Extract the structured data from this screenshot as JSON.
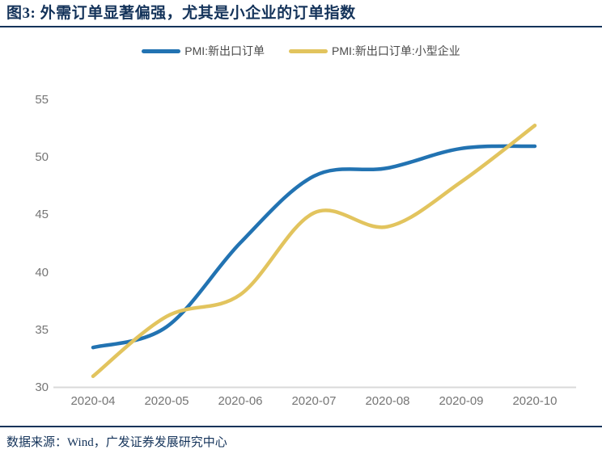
{
  "header": {
    "title": "图3: 外需订单显著偏强，尤其是小企业的订单指数"
  },
  "footer": {
    "source": "数据来源：Wind，广发证券发展研究中心"
  },
  "colors": {
    "navy": "#14335a",
    "blue": "#2273b2",
    "yellow": "#e2c45e",
    "axis_gray": "#d9d9d9",
    "tick_gray": "#757575",
    "legend_text": "#4a4a4a"
  },
  "chart_data": {
    "type": "line",
    "title": "图3: 外需订单显著偏强，尤其是小企业的订单指数",
    "categories": [
      "2020-04",
      "2020-05",
      "2020-06",
      "2020-07",
      "2020-08",
      "2020-09",
      "2020-10"
    ],
    "series": [
      {
        "name": "PMI:新出口订单",
        "color_key": "blue",
        "values": [
          33.5,
          35.3,
          42.6,
          48.4,
          49.1,
          50.8,
          51.0
        ]
      },
      {
        "name": "PMI:新出口订单:小型企业",
        "color_key": "yellow",
        "values": [
          31.0,
          36.2,
          38.1,
          45.2,
          44.0,
          47.9,
          52.8
        ]
      }
    ],
    "ylim": [
      30,
      55
    ],
    "yticks": [
      30,
      35,
      40,
      45,
      50,
      55
    ],
    "xlabel": "",
    "ylabel": "",
    "grid": false,
    "legend_position": "top-center",
    "line_smoothing": "spline"
  }
}
